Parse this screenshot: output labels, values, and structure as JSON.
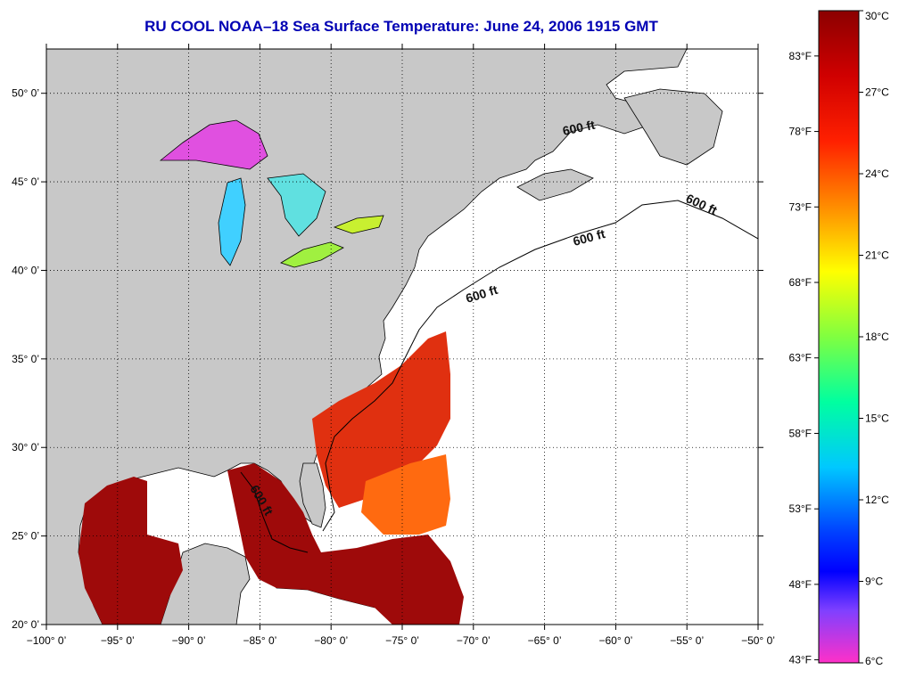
{
  "title": "RU COOL  NOAA–18  Sea Surface Temperature:  June 24, 2006 1915 GMT",
  "map": {
    "lon_range": [
      -100,
      -50
    ],
    "lat_range": [
      20,
      52.5
    ],
    "x_ticks": [
      {
        "value": -100,
        "label": "−100° 0’"
      },
      {
        "value": -95,
        "label": "−95° 0’"
      },
      {
        "value": -90,
        "label": "−90° 0’"
      },
      {
        "value": -85,
        "label": "−85° 0’"
      },
      {
        "value": -80,
        "label": "−80° 0’"
      },
      {
        "value": -75,
        "label": "−75° 0’"
      },
      {
        "value": -70,
        "label": "−70° 0’"
      },
      {
        "value": -65,
        "label": "−65° 0’"
      },
      {
        "value": -60,
        "label": "−60° 0’"
      },
      {
        "value": -55,
        "label": "−55° 0’"
      },
      {
        "value": -50,
        "label": "−50° 0’"
      }
    ],
    "y_ticks": [
      {
        "value": 50,
        "label": "50° 0’"
      },
      {
        "value": 45,
        "label": "45° 0’"
      },
      {
        "value": 40,
        "label": "40° 0’"
      },
      {
        "value": 35,
        "label": "35° 0’"
      },
      {
        "value": 30,
        "label": "30° 0’"
      },
      {
        "value": 25,
        "label": "25° 0’"
      },
      {
        "value": 20,
        "label": "20° 0’"
      }
    ],
    "contour_labels": [
      "600 ft",
      "600 ft",
      "600 ft",
      "600 ft",
      "600 ft"
    ],
    "colors": {
      "land": "#c8c8c8",
      "ocean_nodata": "#ffffff",
      "warm_water": "#9e0a0a",
      "grid": "#000000"
    }
  },
  "colorbar": {
    "range_c": [
      6,
      30
    ],
    "celsius_labels": [
      {
        "value": 30,
        "label": "30°C"
      },
      {
        "value": 27,
        "label": "27°C"
      },
      {
        "value": 24,
        "label": "24°C"
      },
      {
        "value": 21,
        "label": "21°C"
      },
      {
        "value": 18,
        "label": "18°C"
      },
      {
        "value": 15,
        "label": "15°C"
      },
      {
        "value": 12,
        "label": "12°C"
      },
      {
        "value": 9,
        "label": "9°C"
      },
      {
        "value": 6,
        "label": "6°C"
      }
    ],
    "fahrenheit_labels": [
      {
        "value": 83,
        "label": "83°F"
      },
      {
        "value": 78,
        "label": "78°F"
      },
      {
        "value": 73,
        "label": "73°F"
      },
      {
        "value": 68,
        "label": "68°F"
      },
      {
        "value": 63,
        "label": "63°F"
      },
      {
        "value": 58,
        "label": "58°F"
      },
      {
        "value": 53,
        "label": "53°F"
      },
      {
        "value": 48,
        "label": "48°F"
      },
      {
        "value": 43,
        "label": "43°F"
      }
    ],
    "gradient": [
      "#8b0000",
      "#ff0000",
      "#ff8000",
      "#ffff00",
      "#80ff00",
      "#00ff80",
      "#00ffff",
      "#0080ff",
      "#0000ff",
      "#ff00ff"
    ]
  }
}
